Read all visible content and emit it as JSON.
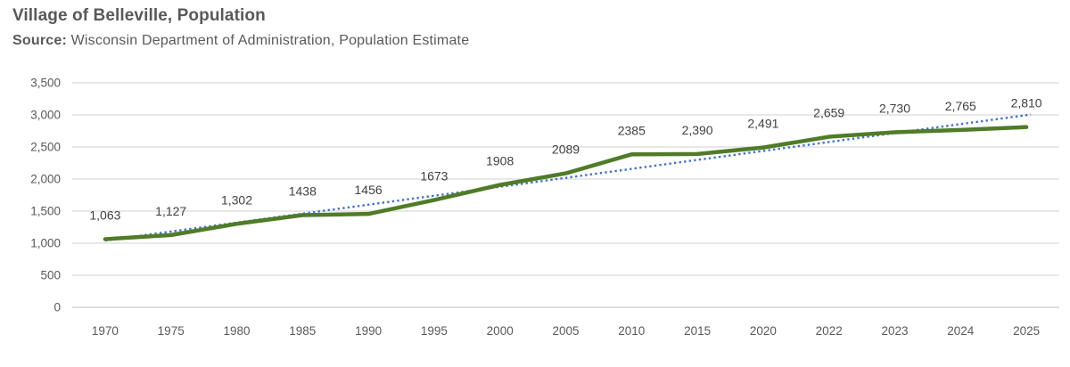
{
  "header": {
    "title": "Village of Belleville, Population",
    "source_label": "Source:",
    "source_text": " Wisconsin Department of Administration, Population Estimate"
  },
  "chart_data": {
    "type": "line",
    "title": "Village of Belleville, Population",
    "subtitle": "Source: Wisconsin Department of Administration, Population Estimate",
    "categories": [
      "1970",
      "1975",
      "1980",
      "1985",
      "1990",
      "1995",
      "2000",
      "2005",
      "2010",
      "2015",
      "2020",
      "2022",
      "2023",
      "2024",
      "2025"
    ],
    "series": [
      {
        "name": "Population",
        "values": [
          1063,
          1127,
          1302,
          1438,
          1456,
          1673,
          1908,
          2089,
          2385,
          2390,
          2491,
          2659,
          2730,
          2765,
          2810
        ],
        "data_labels": [
          "1,063",
          "1,127",
          "1,302",
          "1438",
          "1456",
          "1673",
          "1908",
          "2089",
          "2385",
          "2,390",
          "2,491",
          "2,659",
          "2,730",
          "2,765",
          "2,810"
        ]
      }
    ],
    "trendline": {
      "type": "linear",
      "style": "dotted"
    },
    "y_axis": {
      "min": 0,
      "max": 3500,
      "step": 500,
      "tick_labels": [
        "0",
        "500",
        "1,000",
        "1,500",
        "2,000",
        "2,500",
        "3,000",
        "3,500"
      ]
    },
    "grid": true,
    "legend": false,
    "colors": {
      "line": "#507b28",
      "trendline": "#4472c4",
      "gridline": "#d9d9d9",
      "zeroline": "#c9c9c9",
      "tick_text": "#595959",
      "label_text": "#404040"
    }
  }
}
